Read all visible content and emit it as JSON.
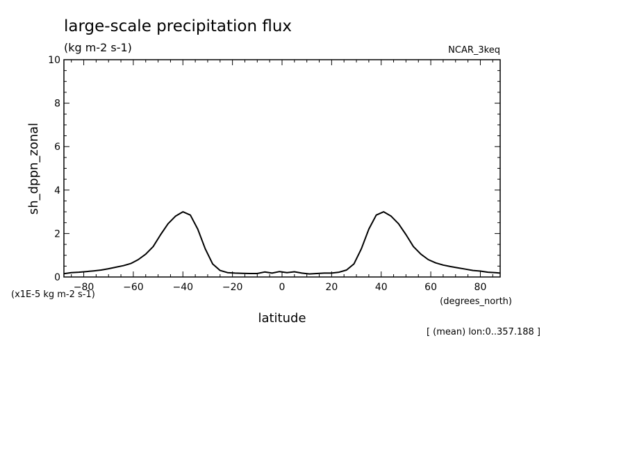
{
  "chart_data": {
    "type": "line",
    "title": "large-scale precipitation flux",
    "subtitle": "(kg m-2 s-1)",
    "dataset_label": "NCAR_3keq",
    "xlabel": "latitude",
    "x_units": "(degrees_north)",
    "ylabel": "sh_dppn_zonal",
    "y_units": "(x1E-5 kg m-2 s-1)",
    "footnote": "[ (mean) lon:0..357.188 ]",
    "xlim": [
      -88,
      88
    ],
    "ylim": [
      0,
      10
    ],
    "x_ticks": [
      -80,
      -60,
      -40,
      -20,
      0,
      20,
      40,
      60,
      80
    ],
    "x_tick_labels": [
      "-80",
      "-60",
      "-40",
      "-20",
      "0",
      "20",
      "40",
      "60",
      "80"
    ],
    "y_ticks": [
      0,
      2,
      4,
      6,
      8,
      10
    ],
    "y_tick_labels": [
      "0",
      "2",
      "4",
      "6",
      "8",
      "10"
    ],
    "grid": false,
    "series": [
      {
        "color": "#000000",
        "x": [
          -88,
          -85,
          -82,
          -79,
          -76,
          -73,
          -70,
          -67,
          -64,
          -61,
          -58,
          -55,
          -52,
          -49,
          -46,
          -43,
          -40,
          -37,
          -34,
          -31,
          -28,
          -25,
          -22,
          -19,
          -16,
          -13,
          -10,
          -7,
          -4,
          -1,
          2,
          5,
          8,
          11,
          14,
          17,
          20,
          23,
          26,
          29,
          32,
          35,
          38,
          41,
          44,
          47,
          50,
          53,
          56,
          59,
          62,
          65,
          68,
          71,
          74,
          77,
          80,
          83,
          86,
          88
        ],
        "y": [
          0.15,
          0.2,
          0.22,
          0.25,
          0.28,
          0.32,
          0.38,
          0.45,
          0.52,
          0.62,
          0.8,
          1.05,
          1.4,
          1.95,
          2.45,
          2.8,
          3.0,
          2.85,
          2.2,
          1.3,
          0.6,
          0.3,
          0.2,
          0.18,
          0.17,
          0.16,
          0.16,
          0.23,
          0.18,
          0.25,
          0.2,
          0.24,
          0.18,
          0.14,
          0.16,
          0.18,
          0.18,
          0.22,
          0.32,
          0.6,
          1.3,
          2.2,
          2.85,
          3.0,
          2.8,
          2.45,
          1.95,
          1.4,
          1.05,
          0.8,
          0.65,
          0.55,
          0.48,
          0.42,
          0.36,
          0.3,
          0.27,
          0.22,
          0.2,
          0.18
        ]
      }
    ]
  }
}
